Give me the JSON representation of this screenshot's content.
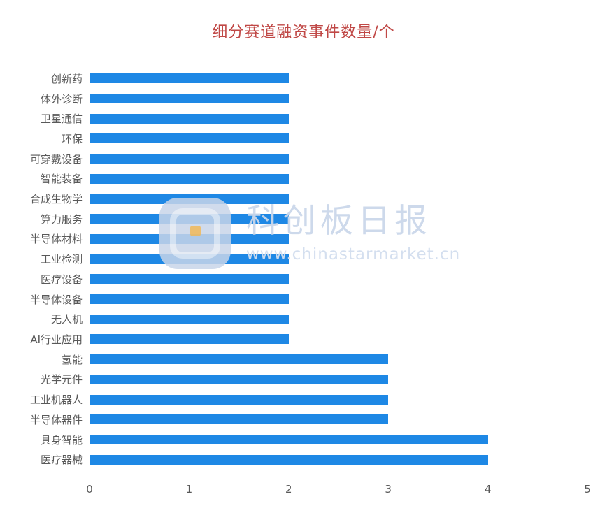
{
  "title": "细分赛道融资事件数量/个",
  "colors": {
    "title": "#c04846",
    "bar": "#1e88e5",
    "watermark": "#cad7ea"
  },
  "watermark": {
    "brand": "科创板日报",
    "url": "www.chinastarmarket.cn"
  },
  "chart_data": {
    "type": "bar",
    "orientation": "horizontal",
    "title": "细分赛道融资事件数量/个",
    "categories": [
      "创新药",
      "体外诊断",
      "卫星通信",
      "环保",
      "可穿戴设备",
      "智能装备",
      "合成生物学",
      "算力服务",
      "半导体材料",
      "工业检测",
      "医疗设备",
      "半导体设备",
      "无人机",
      "AI行业应用",
      "氢能",
      "光学元件",
      "工业机器人",
      "半导体器件",
      "具身智能",
      "医疗器械"
    ],
    "values": [
      2,
      2,
      2,
      2,
      2,
      2,
      2,
      2,
      2,
      2,
      2,
      2,
      2,
      2,
      3,
      3,
      3,
      3,
      4,
      4
    ],
    "xlabel": "",
    "ylabel": "",
    "xlim": [
      0,
      5
    ],
    "x_ticks": [
      0,
      1,
      2,
      3,
      4,
      5
    ],
    "grid": false,
    "legend": false,
    "bar_color": "#1e88e5"
  }
}
